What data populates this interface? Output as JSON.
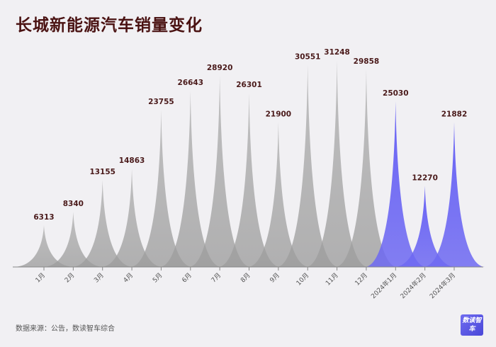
{
  "page": {
    "title": "长城新能源汽车销量变化",
    "source": "数据来源：公告，数读智车综合",
    "logo": "数读智车"
  },
  "colors": {
    "gray_series": "#a6a6a6",
    "highlight_series": "#5b55f0",
    "label_text": "#4a1a1a",
    "axis": "#888888",
    "title": "#4a1212"
  },
  "chart_data": {
    "type": "area",
    "title": "长城新能源汽车销量变化",
    "categories": [
      "1月",
      "2月",
      "3月",
      "4月",
      "5月",
      "6月",
      "7月",
      "8月",
      "9月",
      "10月",
      "11月",
      "12月",
      "2024年1月",
      "2024年2月",
      "2024年3月"
    ],
    "values": [
      6313,
      8340,
      13155,
      14863,
      23755,
      26643,
      28920,
      26301,
      21900,
      30551,
      31248,
      29858,
      25030,
      12270,
      21882
    ],
    "highlight_indices": [
      12,
      13,
      14
    ],
    "ylim": [
      0,
      31248
    ],
    "xlabel": "",
    "ylabel": "",
    "grid": false,
    "legend": "none"
  }
}
